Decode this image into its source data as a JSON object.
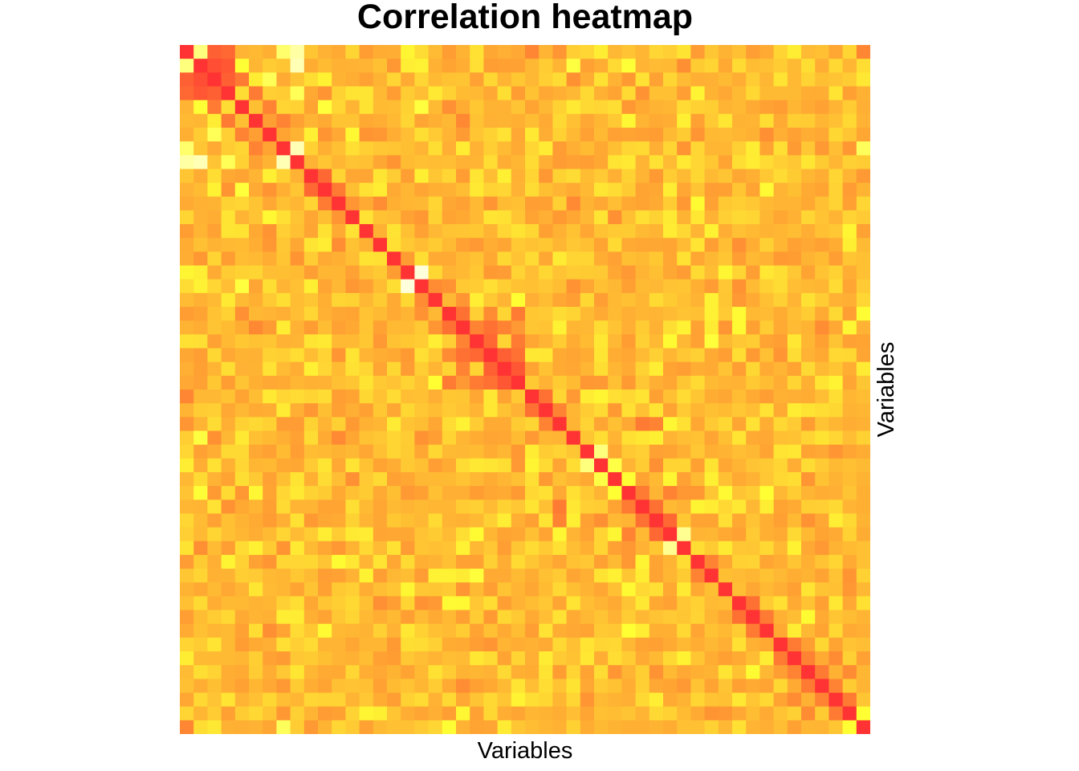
{
  "chart_data": {
    "type": "heatmap",
    "title": "Correlation heatmap",
    "xlabel": "Variables",
    "ylabel": "Variables",
    "size": 50,
    "value_range": [
      -1,
      1
    ],
    "colors": [
      "#ff3333",
      "#ff8c33",
      "#ffbb33",
      "#ffff33",
      "#ffffee"
    ],
    "diagonal_value": 1,
    "symmetric": true,
    "generator_seed": 13,
    "strong_pairs": [
      [
        0,
        2,
        0.75
      ],
      [
        0,
        3,
        0.7
      ],
      [
        1,
        2,
        0.85
      ],
      [
        1,
        3,
        0.8
      ],
      [
        2,
        3,
        0.75
      ],
      [
        2,
        4,
        0.6
      ],
      [
        3,
        5,
        0.6
      ],
      [
        4,
        6,
        0.55
      ],
      [
        5,
        7,
        0.55
      ],
      [
        0,
        1,
        -0.7
      ],
      [
        0,
        8,
        -0.8
      ],
      [
        1,
        8,
        -0.85
      ],
      [
        7,
        8,
        -0.85
      ],
      [
        0,
        7,
        -0.65
      ],
      [
        2,
        6,
        -0.6
      ],
      [
        3,
        8,
        -0.6
      ],
      [
        9,
        10,
        0.7
      ],
      [
        10,
        11,
        0.6
      ],
      [
        16,
        17,
        -0.95
      ],
      [
        17,
        18,
        0.5
      ],
      [
        19,
        20,
        0.65
      ],
      [
        19,
        24,
        0.6
      ],
      [
        20,
        21,
        0.55
      ],
      [
        20,
        22,
        0.65
      ],
      [
        21,
        22,
        0.7
      ],
      [
        21,
        24,
        0.6
      ],
      [
        22,
        23,
        0.75
      ],
      [
        23,
        24,
        0.8
      ],
      [
        22,
        24,
        0.65
      ],
      [
        20,
        23,
        0.55
      ],
      [
        19,
        22,
        0.5
      ],
      [
        25,
        26,
        0.65
      ],
      [
        26,
        27,
        0.55
      ],
      [
        27,
        33,
        0.6
      ],
      [
        27,
        34,
        0.55
      ],
      [
        29,
        30,
        -0.7
      ],
      [
        30,
        31,
        -0.55
      ],
      [
        32,
        33,
        0.6
      ],
      [
        33,
        34,
        0.65
      ],
      [
        34,
        35,
        0.7
      ],
      [
        32,
        35,
        0.55
      ],
      [
        35,
        36,
        -0.75
      ],
      [
        31,
        32,
        -0.5
      ],
      [
        37,
        38,
        0.55
      ],
      [
        40,
        41,
        0.65
      ],
      [
        41,
        42,
        0.6
      ],
      [
        43,
        44,
        0.6
      ],
      [
        44,
        45,
        0.55
      ],
      [
        45,
        46,
        0.6
      ],
      [
        46,
        47,
        0.55
      ],
      [
        47,
        48,
        0.6
      ],
      [
        45,
        48,
        0.5
      ],
      [
        48,
        49,
        -0.5
      ],
      [
        44,
        47,
        0.5
      ]
    ]
  }
}
